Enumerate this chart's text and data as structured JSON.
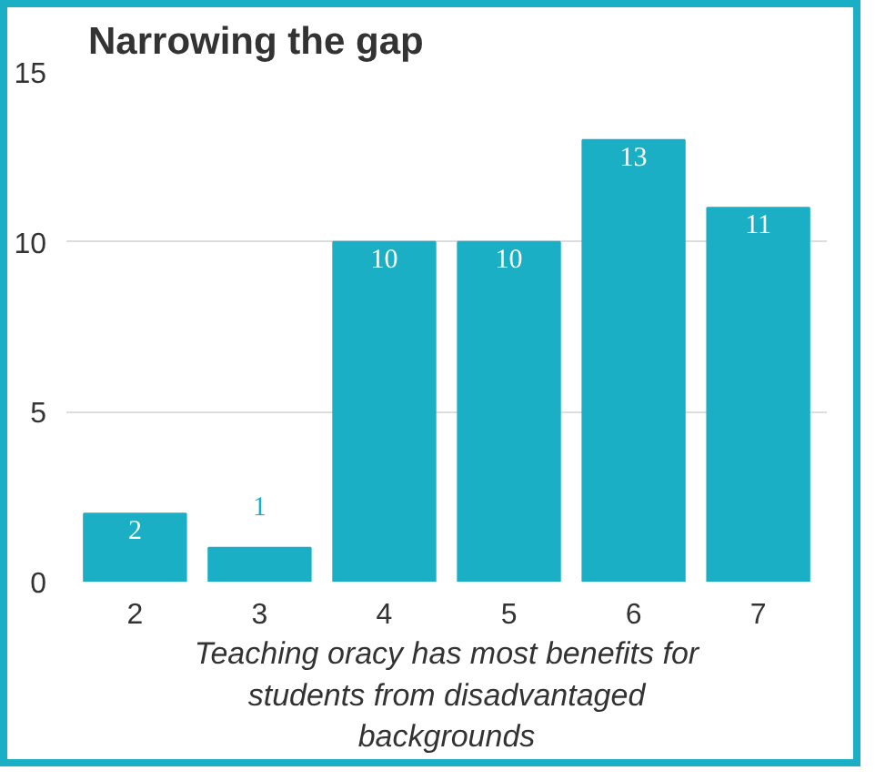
{
  "chart_data": {
    "type": "bar",
    "title": "Narrowing the gap",
    "xlabel": "Teaching oracy has most benefits for students from disadvantaged backgrounds",
    "categories": [
      "2",
      "3",
      "4",
      "5",
      "6",
      "7"
    ],
    "values": [
      2,
      1,
      10,
      10,
      13,
      11
    ],
    "color": "#1aafc4",
    "ylim": [
      0,
      15
    ],
    "yticks": [
      0,
      5,
      10,
      15
    ],
    "grid": "y",
    "data_labels": true
  }
}
